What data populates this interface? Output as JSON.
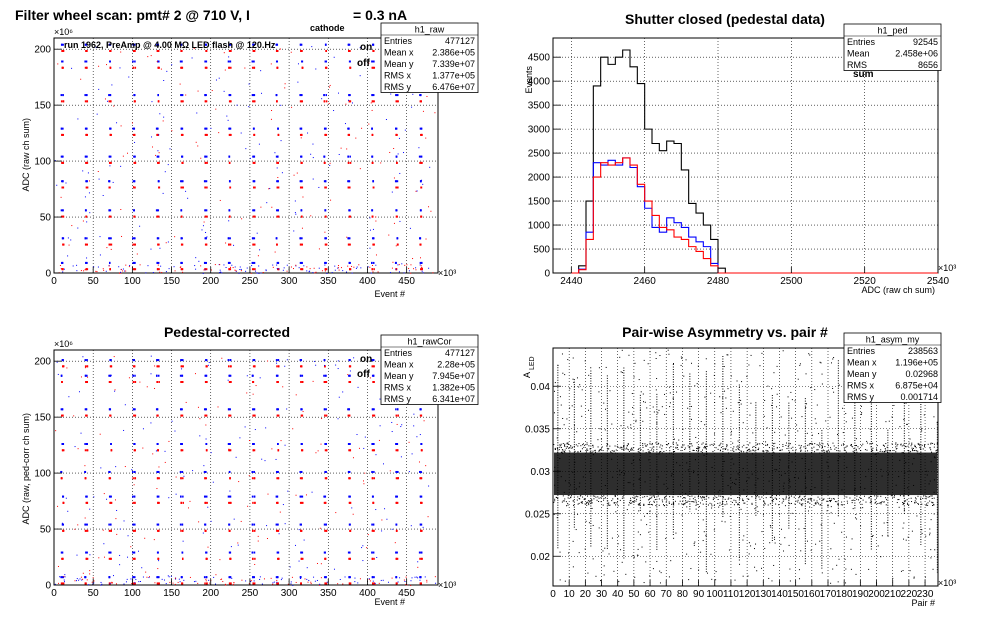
{
  "chart_data": [
    {
      "id": "raw",
      "type": "scatter",
      "title": "Filter wheel scan: pmt#   2 @   710 V, I",
      "title_sub": "cathode",
      "title_tail": "= 0.3 nA",
      "run_text": "run 1962, PreAmp @ 4.00 MΩ  LED flash @  120.Hz",
      "xlabel": "Event #",
      "ylabel": "ADC (raw ch sum)",
      "x_exponent": "×10³",
      "y_exponent": "×10⁶",
      "xlim": [
        0,
        490
      ],
      "ylim": [
        0,
        210
      ],
      "xticks": [
        "0",
        "50",
        "100",
        "150",
        "200",
        "250",
        "300",
        "350",
        "400",
        "450"
      ],
      "yticks": [
        "0",
        "50",
        "100",
        "150",
        "200"
      ],
      "legend": [
        {
          "name": "on",
          "color": "#0000ff"
        },
        {
          "name": "off",
          "color": "#ff0000"
        }
      ],
      "levels": [
        5,
        27,
        52,
        78,
        100,
        125,
        155,
        185,
        200
      ],
      "on_offset": 4,
      "stats": {
        "name": "h1_raw",
        "rows": [
          [
            "Entries",
            "477127"
          ],
          [
            "Mean x",
            "2.386e+05"
          ],
          [
            "Mean y",
            "7.339e+07"
          ],
          [
            "RMS x",
            "1.377e+05"
          ],
          [
            "RMS y",
            "6.476e+07"
          ]
        ]
      }
    },
    {
      "id": "ped",
      "type": "line",
      "title": "Shutter closed (pedestal data)",
      "xlabel": "ADC (raw ch sum)",
      "ylabel": "Events",
      "x_exponent": "×10³",
      "xlim": [
        2435,
        2540
      ],
      "ylim": [
        0,
        4900
      ],
      "xticks": [
        "2440",
        "2460",
        "2480",
        "2500",
        "2520",
        "2540"
      ],
      "yticks": [
        "0",
        "500",
        "1000",
        "1500",
        "2000",
        "2500",
        "3000",
        "3500",
        "4000",
        "4500"
      ],
      "legend": [
        {
          "name": "on",
          "color": "#0000ff"
        },
        {
          "name": "off",
          "color": "#ff0000"
        },
        {
          "name": "sum",
          "color": "#000000"
        }
      ],
      "x": [
        2440,
        2442,
        2444,
        2446,
        2448,
        2450,
        2452,
        2454,
        2456,
        2458,
        2460,
        2462,
        2464,
        2466,
        2468,
        2470,
        2472,
        2474,
        2476,
        2478,
        2480,
        2482
      ],
      "series": [
        {
          "name": "sum",
          "color": "#000000",
          "values": [
            0,
            150,
            1500,
            3900,
            4500,
            4350,
            4500,
            4650,
            4300,
            3950,
            3000,
            2700,
            2550,
            2750,
            2700,
            2150,
            1450,
            1250,
            1000,
            700,
            100,
            0
          ]
        },
        {
          "name": "on",
          "color": "#0000ff",
          "values": [
            0,
            80,
            850,
            2300,
            2250,
            2350,
            2250,
            2400,
            2200,
            1800,
            1350,
            950,
            850,
            1150,
            1050,
            950,
            750,
            650,
            550,
            200,
            0,
            0
          ]
        },
        {
          "name": "off",
          "color": "#ff0000",
          "values": [
            0,
            70,
            700,
            2000,
            2300,
            2250,
            2300,
            2400,
            2250,
            1850,
            1500,
            1200,
            950,
            900,
            750,
            700,
            550,
            450,
            300,
            150,
            0,
            0
          ]
        }
      ],
      "stats": {
        "name": "h1_ped",
        "rows": [
          [
            "Entries",
            "92545"
          ],
          [
            "Mean",
            "2.458e+06"
          ],
          [
            "RMS",
            "8656"
          ]
        ]
      }
    },
    {
      "id": "cor",
      "type": "scatter",
      "title": "Pedestal-corrected",
      "xlabel": "Event #",
      "ylabel": "ADC (raw, ped-corr ch sum)",
      "x_exponent": "×10³",
      "y_exponent": "×10⁶",
      "xlim": [
        0,
        490
      ],
      "ylim": [
        0,
        210
      ],
      "xticks": [
        "0",
        "50",
        "100",
        "150",
        "200",
        "250",
        "300",
        "350",
        "400",
        "450"
      ],
      "yticks": [
        "0",
        "50",
        "100",
        "150",
        "200"
      ],
      "legend": [
        {
          "name": "on",
          "color": "#0000ff"
        },
        {
          "name": "off",
          "color": "#ff0000"
        }
      ],
      "levels": [
        3,
        25,
        50,
        75,
        97,
        122,
        153,
        183,
        197
      ],
      "on_offset": 4,
      "stats": {
        "name": "h1_rawCor",
        "rows": [
          [
            "Entries",
            "477127"
          ],
          [
            "Mean x",
            "2.28e+05"
          ],
          [
            "Mean y",
            "7.945e+07"
          ],
          [
            "RMS x",
            "1.382e+05"
          ],
          [
            "RMS y",
            "6.341e+07"
          ]
        ]
      }
    },
    {
      "id": "asym",
      "type": "scatter",
      "title": "Pair-wise Asymmetry vs. pair #",
      "xlabel": "Pair #",
      "ylabel": "A",
      "ylabel_sub": "LED",
      "x_exponent": "×10³",
      "xlim": [
        0,
        238
      ],
      "ylim": [
        0.0165,
        0.0445
      ],
      "xticks": [
        "0",
        "10",
        "20",
        "30",
        "40",
        "50",
        "60",
        "70",
        "80",
        "90",
        "100",
        "110",
        "120",
        "130",
        "140",
        "150",
        "160",
        "170",
        "180",
        "190",
        "200",
        "210",
        "220",
        "230"
      ],
      "yticks": [
        "0.02",
        "0.025",
        "0.03",
        "0.035",
        "0.04"
      ],
      "center": 0.0297,
      "stats": {
        "name": "h1_asym_my",
        "rows": [
          [
            "Entries",
            "238563"
          ],
          [
            "Mean x",
            "1.196e+05"
          ],
          [
            "Mean y",
            "0.02968"
          ],
          [
            "RMS x",
            "6.875e+04"
          ],
          [
            "RMS y",
            "0.001714"
          ]
        ]
      }
    }
  ]
}
